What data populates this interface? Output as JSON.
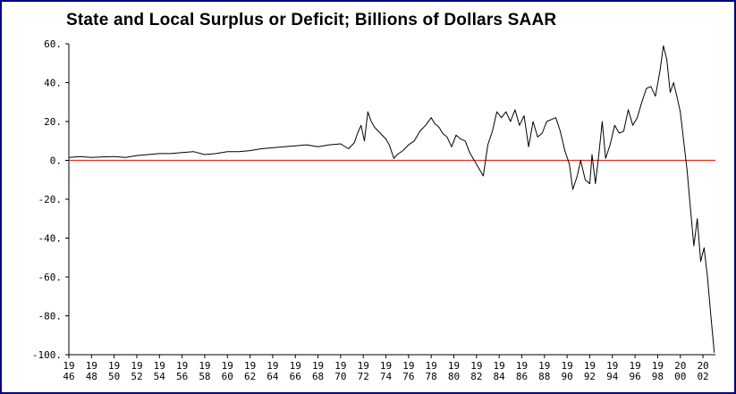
{
  "chart_data": {
    "type": "line",
    "title": "State and Local Surplus or Deficit; Billions of Dollars SAAR",
    "xlabel": "",
    "ylabel": "",
    "ylim": [
      -100,
      60
    ],
    "xlim": [
      1946,
      2003.1
    ],
    "y_ticks": [
      "60.",
      "40.",
      "20.",
      "0.",
      "-20.",
      "-40.",
      "-60.",
      "-80.",
      "-100."
    ],
    "y_tick_values": [
      60,
      40,
      20,
      0,
      -20,
      -40,
      -60,
      -80,
      -100
    ],
    "x_ticks": [
      {
        "year": 1946,
        "top": "19",
        "bottom": "46"
      },
      {
        "year": 1948,
        "top": "19",
        "bottom": "48"
      },
      {
        "year": 1950,
        "top": "19",
        "bottom": "50"
      },
      {
        "year": 1952,
        "top": "19",
        "bottom": "52"
      },
      {
        "year": 1954,
        "top": "19",
        "bottom": "54"
      },
      {
        "year": 1956,
        "top": "19",
        "bottom": "56"
      },
      {
        "year": 1958,
        "top": "19",
        "bottom": "58"
      },
      {
        "year": 1960,
        "top": "19",
        "bottom": "60"
      },
      {
        "year": 1962,
        "top": "19",
        "bottom": "62"
      },
      {
        "year": 1964,
        "top": "19",
        "bottom": "64"
      },
      {
        "year": 1966,
        "top": "19",
        "bottom": "66"
      },
      {
        "year": 1968,
        "top": "19",
        "bottom": "68"
      },
      {
        "year": 1970,
        "top": "19",
        "bottom": "70"
      },
      {
        "year": 1972,
        "top": "19",
        "bottom": "72"
      },
      {
        "year": 1974,
        "top": "19",
        "bottom": "74"
      },
      {
        "year": 1976,
        "top": "19",
        "bottom": "76"
      },
      {
        "year": 1978,
        "top": "19",
        "bottom": "78"
      },
      {
        "year": 1980,
        "top": "19",
        "bottom": "80"
      },
      {
        "year": 1982,
        "top": "19",
        "bottom": "82"
      },
      {
        "year": 1984,
        "top": "19",
        "bottom": "84"
      },
      {
        "year": 1986,
        "top": "19",
        "bottom": "86"
      },
      {
        "year": 1988,
        "top": "19",
        "bottom": "88"
      },
      {
        "year": 1990,
        "top": "19",
        "bottom": "90"
      },
      {
        "year": 1992,
        "top": "19",
        "bottom": "92"
      },
      {
        "year": 1994,
        "top": "19",
        "bottom": "94"
      },
      {
        "year": 1996,
        "top": "19",
        "bottom": "96"
      },
      {
        "year": 1998,
        "top": "19",
        "bottom": "98"
      },
      {
        "year": 2000,
        "top": "20",
        "bottom": "00"
      },
      {
        "year": 2002,
        "top": "20",
        "bottom": "02"
      }
    ],
    "reference_line": {
      "y": 0,
      "color": "#e0301e"
    },
    "line_color": "#000000",
    "axis_color": "#000000",
    "border_color": "#000080",
    "grid": false,
    "series": [
      {
        "points": [
          [
            1946.0,
            1.5
          ],
          [
            1947.0,
            2.0
          ],
          [
            1948.0,
            1.5
          ],
          [
            1949.0,
            1.8
          ],
          [
            1950.0,
            2.0
          ],
          [
            1951.0,
            1.5
          ],
          [
            1952.0,
            2.5
          ],
          [
            1953.0,
            3.0
          ],
          [
            1954.0,
            3.5
          ],
          [
            1955.0,
            3.5
          ],
          [
            1956.0,
            4.0
          ],
          [
            1957.0,
            4.5
          ],
          [
            1958.0,
            3.0
          ],
          [
            1959.0,
            3.5
          ],
          [
            1960.0,
            4.5
          ],
          [
            1961.0,
            4.5
          ],
          [
            1962.0,
            5.0
          ],
          [
            1963.0,
            6.0
          ],
          [
            1964.0,
            6.5
          ],
          [
            1965.0,
            7.0
          ],
          [
            1966.0,
            7.5
          ],
          [
            1967.0,
            8.0
          ],
          [
            1968.0,
            7.0
          ],
          [
            1969.0,
            8.0
          ],
          [
            1970.0,
            8.5
          ],
          [
            1970.7,
            6.0
          ],
          [
            1971.2,
            9.0
          ],
          [
            1971.5,
            14.0
          ],
          [
            1971.8,
            18.0
          ],
          [
            1972.1,
            10.0
          ],
          [
            1972.4,
            25.0
          ],
          [
            1972.7,
            20.0
          ],
          [
            1973.0,
            17.0
          ],
          [
            1973.5,
            14.0
          ],
          [
            1974.0,
            11.0
          ],
          [
            1974.3,
            8.0
          ],
          [
            1974.7,
            1.0
          ],
          [
            1975.0,
            3.0
          ],
          [
            1975.5,
            5.0
          ],
          [
            1976.0,
            8.0
          ],
          [
            1976.5,
            10.0
          ],
          [
            1977.0,
            15.0
          ],
          [
            1977.5,
            18.0
          ],
          [
            1978.0,
            22.0
          ],
          [
            1978.3,
            19.0
          ],
          [
            1978.7,
            17.0
          ],
          [
            1979.0,
            14.0
          ],
          [
            1979.4,
            12.0
          ],
          [
            1979.8,
            7.0
          ],
          [
            1980.2,
            13.0
          ],
          [
            1980.6,
            11.0
          ],
          [
            1981.0,
            10.0
          ],
          [
            1981.4,
            4.0
          ],
          [
            1981.8,
            0.0
          ],
          [
            1982.2,
            -4.0
          ],
          [
            1982.6,
            -8.0
          ],
          [
            1983.0,
            8.0
          ],
          [
            1983.4,
            15.0
          ],
          [
            1983.8,
            25.0
          ],
          [
            1984.2,
            22.0
          ],
          [
            1984.6,
            25.0
          ],
          [
            1985.0,
            20.0
          ],
          [
            1985.4,
            26.0
          ],
          [
            1985.8,
            18.0
          ],
          [
            1986.2,
            23.0
          ],
          [
            1986.6,
            7.0
          ],
          [
            1987.0,
            20.0
          ],
          [
            1987.4,
            12.0
          ],
          [
            1987.8,
            14.0
          ],
          [
            1988.2,
            20.0
          ],
          [
            1988.6,
            21.0
          ],
          [
            1989.0,
            22.0
          ],
          [
            1989.4,
            15.0
          ],
          [
            1989.8,
            5.0
          ],
          [
            1990.2,
            -2.0
          ],
          [
            1990.5,
            -15.0
          ],
          [
            1990.9,
            -8.0
          ],
          [
            1991.2,
            0.0
          ],
          [
            1991.6,
            -10.0
          ],
          [
            1992.0,
            -12.0
          ],
          [
            1992.2,
            3.0
          ],
          [
            1992.5,
            -12.0
          ],
          [
            1992.8,
            3.0
          ],
          [
            1993.1,
            20.0
          ],
          [
            1993.4,
            1.0
          ],
          [
            1993.8,
            8.0
          ],
          [
            1994.2,
            18.0
          ],
          [
            1994.6,
            14.0
          ],
          [
            1995.0,
            15.0
          ],
          [
            1995.4,
            26.0
          ],
          [
            1995.8,
            18.0
          ],
          [
            1996.2,
            22.0
          ],
          [
            1996.6,
            30.0
          ],
          [
            1997.0,
            37.0
          ],
          [
            1997.4,
            38.0
          ],
          [
            1997.8,
            33.0
          ],
          [
            1998.2,
            46.0
          ],
          [
            1998.5,
            59.0
          ],
          [
            1998.8,
            52.0
          ],
          [
            1999.1,
            35.0
          ],
          [
            1999.4,
            40.0
          ],
          [
            1999.7,
            33.0
          ],
          [
            2000.0,
            25.0
          ],
          [
            2000.3,
            10.0
          ],
          [
            2000.6,
            -5.0
          ],
          [
            2000.9,
            -25.0
          ],
          [
            2001.2,
            -44.0
          ],
          [
            2001.5,
            -30.0
          ],
          [
            2001.8,
            -52.0
          ],
          [
            2002.1,
            -45.0
          ],
          [
            2002.4,
            -60.0
          ],
          [
            2002.7,
            -80.0
          ],
          [
            2003.0,
            -99.0
          ]
        ]
      }
    ]
  }
}
